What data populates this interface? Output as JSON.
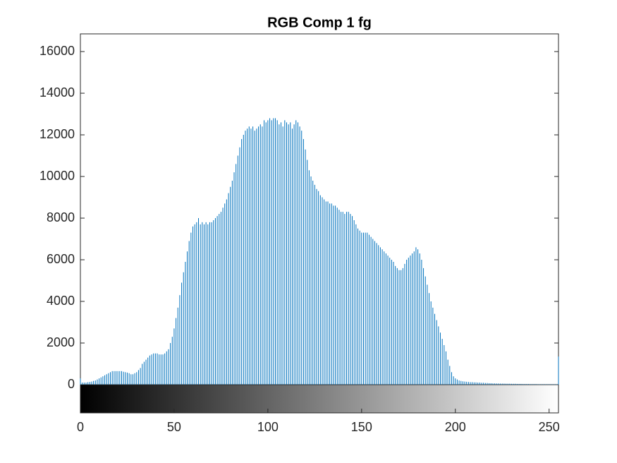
{
  "chart_data": {
    "type": "bar",
    "title": "RGB Comp 1 fg",
    "color": "#0072bd",
    "xlim": [
      0,
      255
    ],
    "xticks": [
      0,
      50,
      100,
      150,
      200,
      250
    ],
    "ylim": [
      0,
      16850
    ],
    "yticks": [
      0,
      2000,
      4000,
      6000,
      8000,
      10000,
      12000,
      14000,
      16000
    ],
    "values": [
      300,
      100,
      100,
      100,
      120,
      130,
      150,
      180,
      200,
      250,
      300,
      350,
      400,
      450,
      500,
      550,
      600,
      650,
      650,
      650,
      650,
      650,
      650,
      620,
      600,
      580,
      550,
      500,
      500,
      550,
      600,
      700,
      800,
      1000,
      1100,
      1200,
      1300,
      1400,
      1450,
      1500,
      1500,
      1500,
      1450,
      1450,
      1450,
      1500,
      1600,
      1700,
      2000,
      2300,
      2700,
      3200,
      3700,
      4300,
      4900,
      5400,
      5900,
      6400,
      6900,
      7300,
      7600,
      7700,
      7800,
      8000,
      7700,
      7800,
      7700,
      7800,
      7700,
      7800,
      7800,
      7900,
      8000,
      8100,
      8200,
      8300,
      8500,
      8700,
      8900,
      9200,
      9500,
      9800,
      10200,
      10600,
      11000,
      11400,
      11800,
      12000,
      12200,
      12300,
      12400,
      12300,
      12400,
      12200,
      12300,
      12400,
      12500,
      12400,
      12700,
      12600,
      12700,
      12800,
      12700,
      12800,
      12800,
      12700,
      12500,
      12600,
      12400,
      12700,
      12600,
      12500,
      12600,
      12300,
      12500,
      12700,
      12600,
      12400,
      12200,
      11800,
      11300,
      10800,
      10300,
      10000,
      9800,
      9600,
      9400,
      9300,
      9100,
      9000,
      8900,
      8800,
      8800,
      8700,
      8700,
      8600,
      8600,
      8500,
      8400,
      8300,
      8300,
      8200,
      8300,
      8300,
      8200,
      8100,
      7900,
      7700,
      7500,
      7400,
      7300,
      7300,
      7300,
      7300,
      7200,
      7100,
      7000,
      6900,
      6800,
      6700,
      6600,
      6500,
      6400,
      6300,
      6200,
      6100,
      6000,
      5900,
      5700,
      5600,
      5500,
      5500,
      5600,
      5800,
      6000,
      6100,
      6200,
      6300,
      6400,
      6600,
      6500,
      6300,
      6000,
      5600,
      5200,
      4800,
      4400,
      4000,
      3700,
      3400,
      3100,
      2800,
      2500,
      2200,
      1900,
      1600,
      1200,
      900,
      600,
      400,
      300,
      250,
      200,
      180,
      160,
      150,
      140,
      130,
      120,
      120,
      110,
      110,
      100,
      100,
      90,
      90,
      80,
      80,
      70,
      70,
      60,
      60,
      55,
      55,
      50,
      50,
      50,
      45,
      45,
      45,
      40,
      40,
      40,
      35,
      35,
      35,
      30,
      30,
      30,
      30,
      25,
      25,
      25,
      25,
      20,
      20,
      20,
      20,
      20,
      20,
      20,
      20,
      20,
      20,
      20,
      1350
    ]
  }
}
